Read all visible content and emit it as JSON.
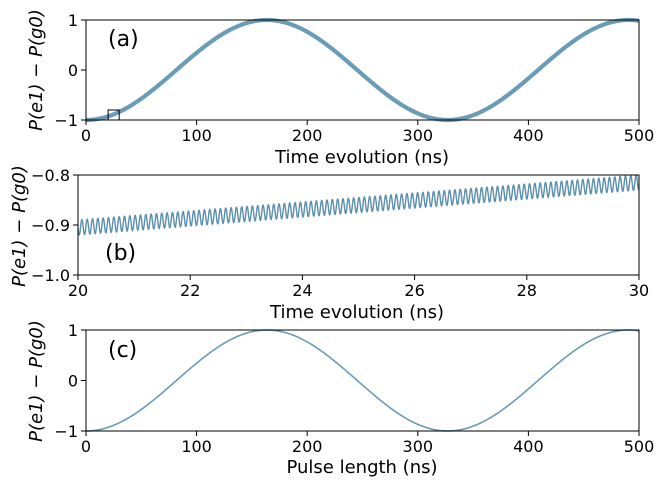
{
  "chart_data": [
    {
      "type": "line",
      "panel_label": "(a)",
      "xlabel": "Time evolution (ns)",
      "ylabel": "P(e1) − P(g0)",
      "xlim": [
        0,
        500
      ],
      "ylim": [
        -1,
        1
      ],
      "xticks": [
        "0",
        "100",
        "200",
        "300",
        "400",
        "500"
      ],
      "yticks": [
        "−1",
        "0",
        "1"
      ],
      "series": [
        {
          "period_ns": 327,
          "amplitude": 1,
          "phase": "starts at -1",
          "fast_ripple_amplitude": 0.01,
          "fast_ripple_period_ns": 0.095
        }
      ],
      "zoom_marker": {
        "x_range": [
          20,
          30
        ],
        "y_range": [
          -1,
          -0.8
        ]
      },
      "line_color": "#6a9bb7"
    },
    {
      "type": "line",
      "panel_label": "(b)",
      "xlabel": "Time evolution (ns)",
      "ylabel": "P(e1) − P(g0)",
      "xlim": [
        20,
        30
      ],
      "ylim": [
        -1.0,
        -0.8
      ],
      "xticks": [
        "20",
        "22",
        "24",
        "26",
        "28",
        "30"
      ],
      "yticks": [
        "−1.0",
        "−0.9",
        "−0.8"
      ],
      "series": [
        {
          "trend_start": -0.905,
          "trend_end": -0.815,
          "oscillation_amplitude": 0.015,
          "oscillation_period_ns": 0.095
        }
      ],
      "line_color": "#5b8fb0"
    },
    {
      "type": "line",
      "panel_label": "(c)",
      "xlabel": "Pulse length (ns)",
      "ylabel": "P(e1) − P(g0)",
      "xlim": [
        0,
        500
      ],
      "ylim": [
        -1,
        1
      ],
      "xticks": [
        "0",
        "100",
        "200",
        "300",
        "400",
        "500"
      ],
      "yticks": [
        "−1",
        "0",
        "1"
      ],
      "series": [
        {
          "period_ns": 327,
          "amplitude": 1,
          "phase": "starts at -1"
        }
      ],
      "line_color": "#6a9bb7"
    }
  ]
}
